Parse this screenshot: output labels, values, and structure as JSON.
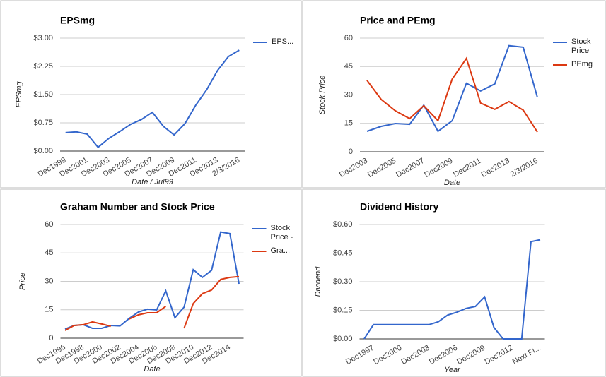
{
  "chart_data": [
    {
      "type": "line",
      "title": "EPSmg",
      "y_label": "EPSmg",
      "x_label": "Date / Jul99",
      "grid": true,
      "legend": "right",
      "categories": [
        "Dec1999",
        null,
        "Dec2001",
        null,
        "Dec2003",
        null,
        "Dec2005",
        null,
        "Dec2007",
        null,
        "Dec2009",
        null,
        "Dec2011",
        null,
        "Dec2013",
        null,
        "2/3/2016"
      ],
      "ylim": [
        0,
        3
      ],
      "yticks": [
        {
          "value": 0,
          "label": "$0.00"
        },
        {
          "value": 0.75,
          "label": "$0.75"
        },
        {
          "value": 1.5,
          "label": "$1.50"
        },
        {
          "value": 2.25,
          "label": "$2.25"
        },
        {
          "value": 3,
          "label": "$3.00"
        }
      ],
      "series": [
        {
          "name": "EPS...",
          "color": "#3366cc",
          "values": [
            0.49,
            0.51,
            0.45,
            0.1,
            0.34,
            0.52,
            0.71,
            0.84,
            1.03,
            0.66,
            0.43,
            0.73,
            1.22,
            1.63,
            2.14,
            2.51,
            2.68
          ]
        }
      ]
    },
    {
      "type": "line",
      "title": "Price and PEmg",
      "y_label": "Stock Price",
      "x_label": "Date",
      "grid": true,
      "legend": "right",
      "categories": [
        "Dec2003",
        null,
        "Dec2005",
        null,
        "Dec2007",
        null,
        "Dec2009",
        null,
        "Dec2011",
        null,
        "Dec2013",
        null,
        "2/3/2016"
      ],
      "ylim": [
        0,
        60
      ],
      "yticks": [
        0,
        15,
        30,
        45,
        60
      ],
      "series": [
        {
          "name": "Stock Price",
          "color": "#3366cc",
          "values": [
            10.8,
            13.4,
            14.9,
            14.5,
            24.6,
            10.8,
            16.4,
            36.2,
            32.1,
            35.8,
            56,
            55.2,
            28.7
          ]
        },
        {
          "name": "PEmg",
          "color": "#dc3912",
          "values": [
            37.7,
            27.6,
            21.6,
            17.5,
            24.3,
            16.4,
            38.4,
            49.3,
            25.7,
            22.4,
            26.5,
            22,
            10.4
          ]
        }
      ]
    },
    {
      "type": "line",
      "title": "Graham Number and Stock Price",
      "y_label": "Price",
      "x_label": "Date",
      "grid": true,
      "legend": "right",
      "categories": [
        "Dec1996",
        null,
        "Dec1998",
        null,
        "Dec2000",
        null,
        "Dec2002",
        null,
        "Dec2004",
        null,
        "Dec2006",
        null,
        "Dec2008",
        null,
        "Dec2010",
        null,
        "Dec2012",
        null,
        "Dec2014",
        null
      ],
      "ylim": [
        0,
        60
      ],
      "yticks": [
        0,
        15,
        30,
        45,
        60
      ],
      "series": [
        {
          "name": "Stock Price -",
          "color": "#3366cc",
          "values": [
            4.8,
            6.7,
            7.1,
            5.2,
            5.2,
            6.7,
            6.5,
            10.4,
            13.8,
            15.3,
            14.9,
            25,
            10.8,
            16.4,
            36.2,
            32.1,
            35.8,
            56,
            55.2,
            28.7
          ]
        },
        {
          "name": "Gra...",
          "color": "#dc3912",
          "values": [
            4.1,
            6.7,
            7.1,
            8.6,
            7.5,
            6.3,
            null,
            10.1,
            12.3,
            13.4,
            13.4,
            16.8,
            null,
            5.2,
            18.3,
            23.5,
            25.4,
            31,
            32.1,
            32.5
          ]
        }
      ]
    },
    {
      "type": "line",
      "title": "Dividend History",
      "y_label": "Dividend",
      "x_label": "Year",
      "grid": true,
      "categories": [
        null,
        "Dec1997",
        null,
        null,
        "Dec2000",
        null,
        null,
        "Dec2003",
        null,
        null,
        "Dec2006",
        null,
        null,
        "Dec2009",
        null,
        null,
        "Dec2012",
        null,
        null,
        "Next Fi..."
      ],
      "ylim": [
        0,
        0.6
      ],
      "yticks": [
        {
          "value": 0,
          "label": "$0.00"
        },
        {
          "value": 0.15,
          "label": "$0.15"
        },
        {
          "value": 0.3,
          "label": "$0.30"
        },
        {
          "value": 0.45,
          "label": "$0.45"
        },
        {
          "value": 0.6,
          "label": "$0.60"
        }
      ],
      "color": "#3366cc",
      "values": [
        0,
        0.075,
        0.075,
        0.075,
        0.075,
        0.075,
        0.075,
        0.075,
        0.09,
        0.125,
        0.14,
        0.16,
        0.17,
        0.22,
        0.06,
        0,
        0,
        0,
        0.51,
        0.52
      ]
    }
  ]
}
